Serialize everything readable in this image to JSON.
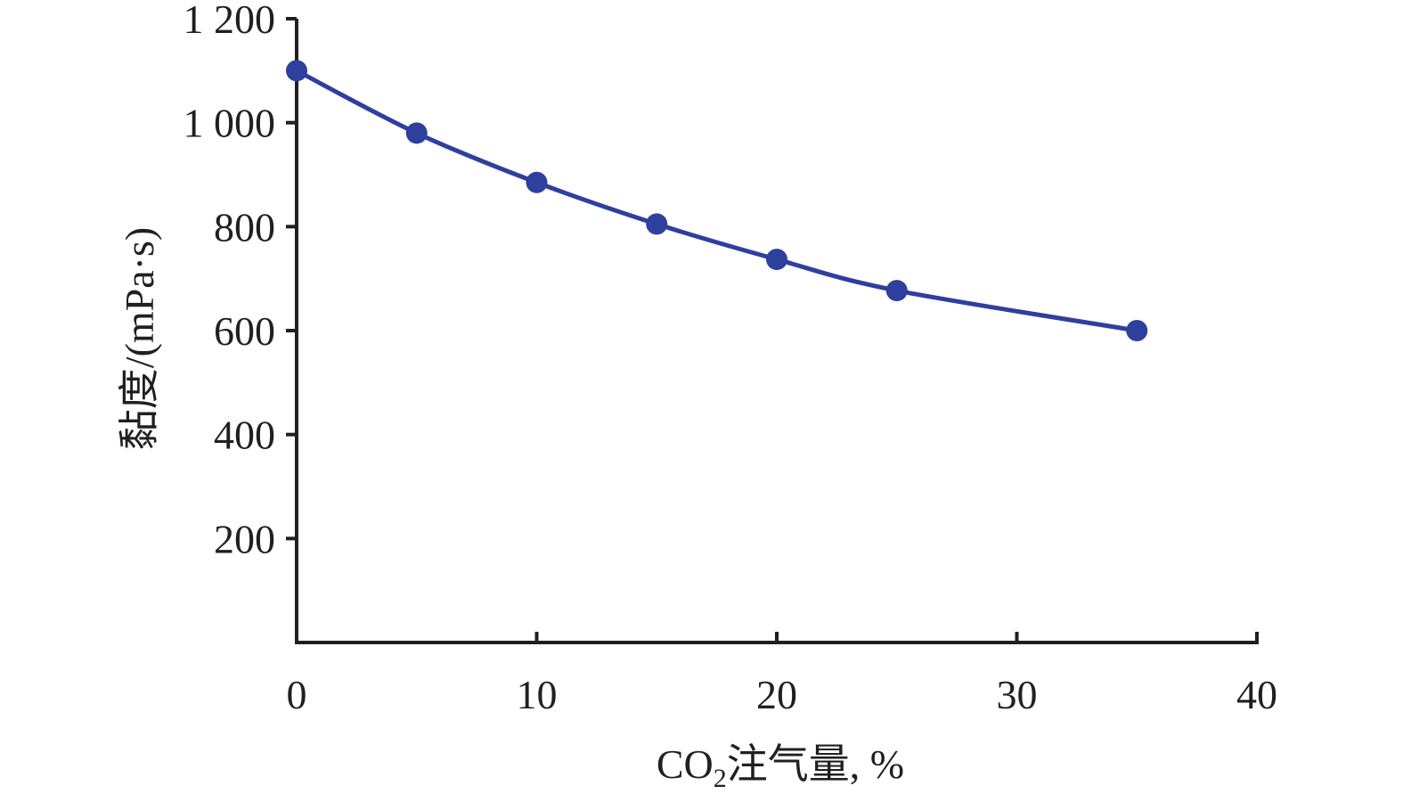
{
  "chart_data": {
    "type": "line",
    "xlabel_prefix": "CO",
    "xlabel_subscript": "2",
    "xlabel_suffix": "注气量, %",
    "ylabel": "黏度/(mPa·s)",
    "xlim": [
      0,
      40
    ],
    "ylim": [
      0,
      1200
    ],
    "x_ticks": [
      0,
      10,
      20,
      30,
      40
    ],
    "x_tick_labels": [
      "0",
      "10",
      "20",
      "30",
      "40"
    ],
    "y_ticks": [
      200,
      400,
      600,
      800,
      1000,
      1200
    ],
    "y_tick_labels": [
      "200",
      "400",
      "600",
      "800",
      "1 000",
      "1 200"
    ],
    "grid": false,
    "series": [
      {
        "color": "#2e3f9e",
        "marker": "circle",
        "x": [
          0,
          5,
          10,
          15,
          20,
          25,
          35
        ],
        "y": [
          1100,
          980,
          885,
          805,
          737,
          677,
          600
        ]
      }
    ]
  }
}
